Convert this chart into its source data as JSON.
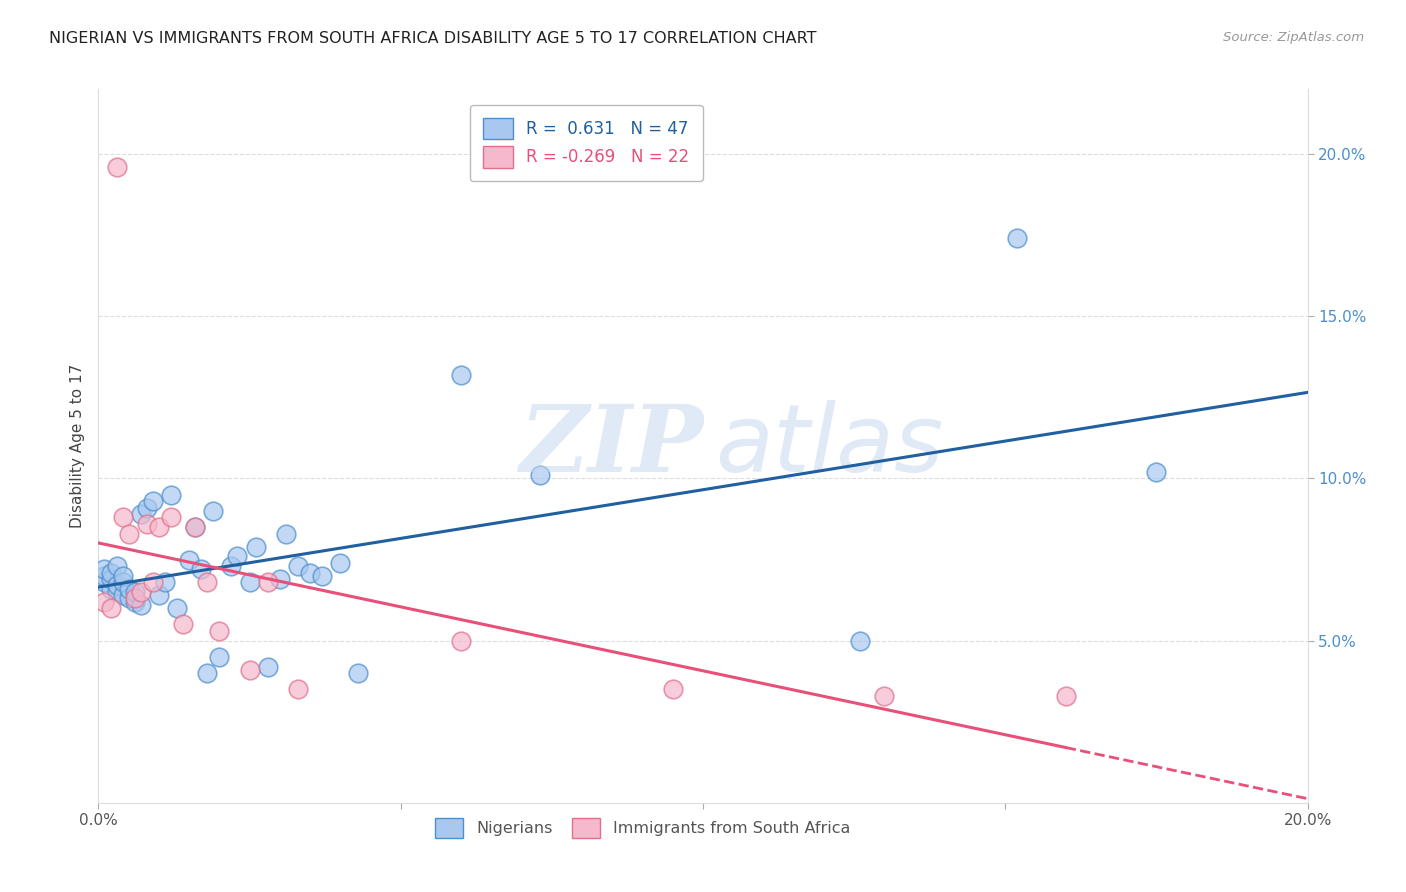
{
  "title": "NIGERIAN VS IMMIGRANTS FROM SOUTH AFRICA DISABILITY AGE 5 TO 17 CORRELATION CHART",
  "source": "Source: ZipAtlas.com",
  "ylabel": "Disability Age 5 to 17",
  "xlim": [
    0.0,
    0.2
  ],
  "ylim": [
    0.0,
    0.22
  ],
  "xticks": [
    0.0,
    0.05,
    0.1,
    0.15,
    0.2
  ],
  "xticklabels": [
    "0.0%",
    "",
    "",
    "",
    "20.0%"
  ],
  "yticks": [
    0.05,
    0.1,
    0.15,
    0.2
  ],
  "ytick_labels": [
    "5.0%",
    "10.0%",
    "15.0%",
    "20.0%"
  ],
  "blue_color": "#a8c8f0",
  "blue_edge_color": "#4d8fcc",
  "pink_color": "#f5b8cc",
  "pink_edge_color": "#e0708a",
  "blue_line_color": "#2060a0",
  "pink_line_color": "#e8507a",
  "title_color": "#222222",
  "source_color": "#999999",
  "tick_color": "#4d8fcc",
  "grid_color": "#dddddd",
  "watermark_color": "#c8d8f0",
  "nigerians_x": [
    0.001,
    0.001,
    0.001,
    0.002,
    0.002,
    0.002,
    0.003,
    0.003,
    0.003,
    0.004,
    0.004,
    0.004,
    0.005,
    0.005,
    0.006,
    0.006,
    0.007,
    0.007,
    0.008,
    0.009,
    0.01,
    0.011,
    0.012,
    0.013,
    0.015,
    0.016,
    0.017,
    0.018,
    0.019,
    0.02,
    0.022,
    0.023,
    0.025,
    0.026,
    0.028,
    0.03,
    0.031,
    0.033,
    0.035,
    0.037,
    0.04,
    0.043,
    0.06,
    0.073,
    0.126,
    0.152,
    0.175
  ],
  "nigerians_y": [
    0.068,
    0.07,
    0.072,
    0.066,
    0.069,
    0.071,
    0.065,
    0.067,
    0.073,
    0.064,
    0.068,
    0.07,
    0.063,
    0.066,
    0.062,
    0.065,
    0.061,
    0.089,
    0.091,
    0.093,
    0.064,
    0.068,
    0.095,
    0.06,
    0.075,
    0.085,
    0.072,
    0.04,
    0.09,
    0.045,
    0.073,
    0.076,
    0.068,
    0.079,
    0.042,
    0.069,
    0.083,
    0.073,
    0.071,
    0.07,
    0.074,
    0.04,
    0.132,
    0.101,
    0.05,
    0.174,
    0.102
  ],
  "southafrica_x": [
    0.001,
    0.002,
    0.003,
    0.004,
    0.005,
    0.006,
    0.007,
    0.008,
    0.009,
    0.01,
    0.012,
    0.014,
    0.016,
    0.018,
    0.02,
    0.025,
    0.028,
    0.033,
    0.06,
    0.095,
    0.13,
    0.16
  ],
  "southafrica_y": [
    0.062,
    0.06,
    0.196,
    0.088,
    0.083,
    0.063,
    0.065,
    0.086,
    0.068,
    0.085,
    0.088,
    0.055,
    0.085,
    0.068,
    0.053,
    0.041,
    0.068,
    0.035,
    0.05,
    0.035,
    0.033,
    0.033
  ]
}
